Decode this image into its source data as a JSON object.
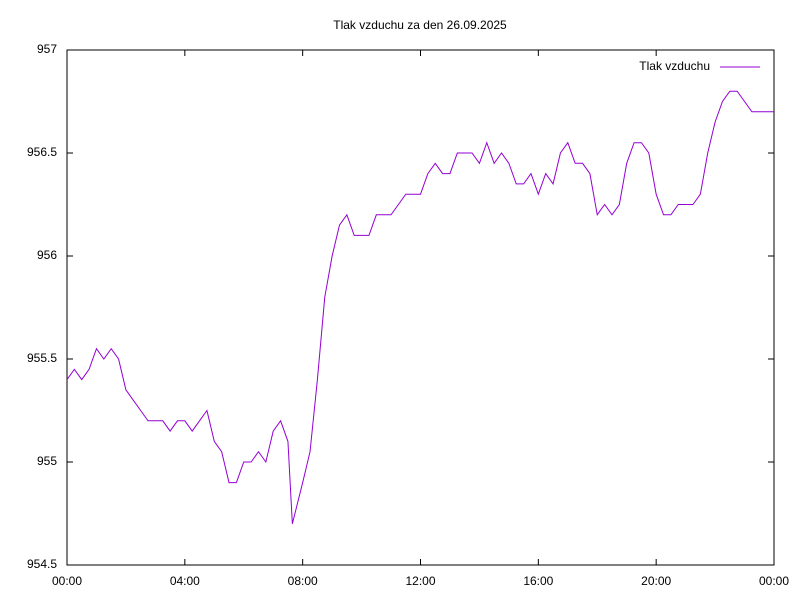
{
  "chart_data": {
    "type": "line",
    "title": "Tlak vzduchu za den 26.09.2025",
    "x": [
      0,
      0.25,
      0.5,
      0.75,
      1,
      1.25,
      1.5,
      1.75,
      2,
      2.25,
      2.5,
      2.75,
      3,
      3.25,
      3.5,
      3.75,
      4,
      4.25,
      4.5,
      4.75,
      5,
      5.25,
      5.5,
      5.75,
      6,
      6.25,
      6.5,
      6.75,
      7,
      7.25,
      7.5,
      7.65,
      8,
      8.25,
      8.5,
      8.75,
      9,
      9.25,
      9.5,
      9.75,
      10,
      10.25,
      10.5,
      10.75,
      11,
      11.25,
      11.5,
      11.75,
      12,
      12.25,
      12.5,
      12.75,
      13,
      13.25,
      13.5,
      13.75,
      14,
      14.25,
      14.5,
      14.75,
      15,
      15.25,
      15.5,
      15.75,
      16,
      16.25,
      16.5,
      16.75,
      17,
      17.25,
      17.5,
      17.75,
      18,
      18.25,
      18.5,
      18.75,
      19,
      19.25,
      19.5,
      19.75,
      20,
      20.25,
      20.5,
      20.75,
      21,
      21.25,
      21.5,
      21.75,
      22,
      22.25,
      22.5,
      22.75,
      23,
      23.25,
      23.5,
      23.75,
      24
    ],
    "series": [
      {
        "name": "Tlak vzduchu",
        "color": "#9400d3",
        "values": [
          955.4,
          955.45,
          955.4,
          955.45,
          955.55,
          955.5,
          955.55,
          955.5,
          955.35,
          955.3,
          955.25,
          955.2,
          955.2,
          955.2,
          955.15,
          955.2,
          955.2,
          955.15,
          955.2,
          955.25,
          955.1,
          955.05,
          954.9,
          954.9,
          955.0,
          955.0,
          955.05,
          955.0,
          955.15,
          955.2,
          955.1,
          954.7,
          954.9,
          955.05,
          955.4,
          955.8,
          956.0,
          956.15,
          956.2,
          956.1,
          956.1,
          956.1,
          956.2,
          956.2,
          956.2,
          956.25,
          956.3,
          956.3,
          956.3,
          956.4,
          956.45,
          956.4,
          956.4,
          956.5,
          956.5,
          956.5,
          956.45,
          956.55,
          956.45,
          956.5,
          956.45,
          956.35,
          956.35,
          956.4,
          956.3,
          956.4,
          956.35,
          956.5,
          956.55,
          956.45,
          956.45,
          956.4,
          956.2,
          956.25,
          956.2,
          956.25,
          956.45,
          956.55,
          956.55,
          956.5,
          956.3,
          956.2,
          956.2,
          956.25,
          956.25,
          956.25,
          956.3,
          956.5,
          956.65,
          956.75,
          956.8,
          956.8,
          956.75,
          956.7,
          956.7,
          956.7,
          956.7
        ]
      }
    ],
    "xlim": [
      0,
      24
    ],
    "xticks": [
      {
        "value": 0,
        "label": "00:00"
      },
      {
        "value": 4,
        "label": "04:00"
      },
      {
        "value": 8,
        "label": "08:00"
      },
      {
        "value": 12,
        "label": "12:00"
      },
      {
        "value": 16,
        "label": "16:00"
      },
      {
        "value": 20,
        "label": "20:00"
      },
      {
        "value": 24,
        "label": "00:00"
      }
    ],
    "ylim": [
      954.5,
      957
    ],
    "yticks": [
      {
        "value": 954.5,
        "label": "954.5"
      },
      {
        "value": 955,
        "label": "955"
      },
      {
        "value": 955.5,
        "label": "955.5"
      },
      {
        "value": 956,
        "label": "956"
      },
      {
        "value": 956.5,
        "label": "956.5"
      },
      {
        "value": 957,
        "label": "957"
      }
    ],
    "legend": "top-right",
    "grid": false
  }
}
